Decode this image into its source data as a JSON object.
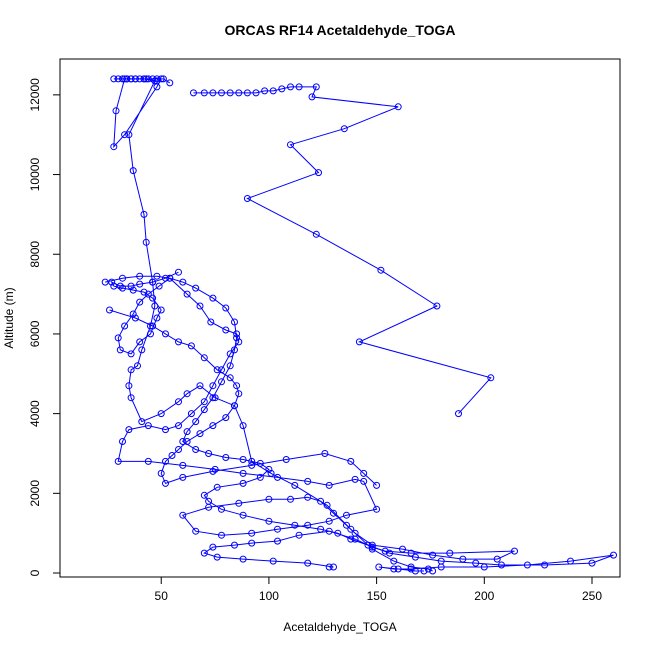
{
  "chart_data": {
    "type": "line",
    "title": "ORCAS RF14 Acetaldehyde_TOGA",
    "xlabel": "Acetaldehyde_TOGA",
    "ylabel": "Altitude (m)",
    "xlim": [
      3,
      263
    ],
    "ylim": [
      -100,
      12900
    ],
    "x_ticks": [
      50,
      100,
      150,
      200,
      250
    ],
    "y_ticks": [
      0,
      2000,
      4000,
      6000,
      8000,
      10000,
      12000
    ],
    "grid": false,
    "legend": "none",
    "color": "#0000ff",
    "series": [
      {
        "values": [
          [
            54,
            12300
          ],
          [
            51,
            12400
          ],
          [
            48,
            12400
          ],
          [
            44,
            12400
          ],
          [
            40,
            12400
          ],
          [
            36,
            12400
          ],
          [
            32,
            12400
          ],
          [
            28,
            12400
          ],
          [
            34,
            12400
          ],
          [
            38,
            12400
          ],
          [
            42,
            12400
          ],
          [
            46,
            12400
          ],
          [
            50,
            12400
          ],
          [
            48,
            12200
          ],
          [
            33,
            11000
          ],
          [
            28,
            10700
          ],
          [
            29,
            11600
          ],
          [
            33,
            12400
          ],
          [
            36,
            12400
          ],
          [
            43,
            12400
          ],
          [
            47,
            12350
          ],
          [
            35,
            11000
          ],
          [
            37,
            10100
          ],
          [
            42,
            9000
          ],
          [
            43,
            8300
          ],
          [
            46,
            7300
          ],
          [
            47,
            6700
          ],
          [
            45,
            6200
          ],
          [
            41,
            5600
          ],
          [
            39,
            5200
          ],
          [
            36,
            5100
          ],
          [
            35,
            4700
          ],
          [
            36,
            4400
          ],
          [
            41,
            3800
          ],
          [
            50,
            4000
          ],
          [
            58,
            4300
          ],
          [
            62,
            4500
          ],
          [
            68,
            4700
          ],
          [
            75,
            4400
          ],
          [
            84,
            4200
          ],
          [
            88,
            3700
          ],
          [
            92,
            2800
          ],
          [
            101,
            2500
          ],
          [
            112,
            2200
          ],
          [
            127,
            1700
          ],
          [
            138,
            1100
          ],
          [
            148,
            600
          ],
          [
            158,
            300
          ],
          [
            166,
            150
          ],
          [
            174,
            100
          ],
          [
            176,
            50
          ]
        ]
      },
      {
        "values": [
          [
            65,
            12050
          ],
          [
            70,
            12050
          ],
          [
            74,
            12050
          ],
          [
            78,
            12050
          ],
          [
            82,
            12050
          ],
          [
            86,
            12050
          ],
          [
            90,
            12050
          ],
          [
            94,
            12050
          ],
          [
            98,
            12100
          ],
          [
            102,
            12100
          ],
          [
            106,
            12150
          ],
          [
            110,
            12200
          ],
          [
            114,
            12200
          ],
          [
            122,
            12200
          ],
          [
            120,
            11950
          ],
          [
            160,
            11700
          ],
          [
            135,
            11150
          ],
          [
            110,
            10750
          ],
          [
            123,
            10050
          ],
          [
            90,
            9400
          ],
          [
            122,
            8500
          ],
          [
            152,
            7600
          ],
          [
            178,
            6700
          ],
          [
            142,
            5800
          ],
          [
            203,
            4900
          ],
          [
            188,
            4000
          ]
        ]
      },
      {
        "values": [
          [
            48,
            12350
          ],
          [
            42,
            12400
          ],
          [
            38,
            12400
          ],
          [
            34,
            12400
          ],
          [
            30,
            12400
          ]
        ]
      },
      {
        "values": [
          [
            58,
            7550
          ],
          [
            52,
            7400
          ],
          [
            46,
            7300
          ],
          [
            40,
            7250
          ],
          [
            36,
            7200
          ],
          [
            31,
            7200
          ],
          [
            27,
            7300
          ],
          [
            28,
            7200
          ],
          [
            32,
            7150
          ],
          [
            37,
            7100
          ],
          [
            42,
            7050
          ],
          [
            46,
            6900
          ],
          [
            50,
            6600
          ],
          [
            48,
            6400
          ],
          [
            45,
            6000
          ],
          [
            40,
            5800
          ],
          [
            36,
            5500
          ],
          [
            31,
            5600
          ],
          [
            30,
            5900
          ],
          [
            33,
            6200
          ],
          [
            37,
            6500
          ],
          [
            40,
            6800
          ],
          [
            44,
            7000
          ],
          [
            49,
            7200
          ],
          [
            54,
            7400
          ],
          [
            62,
            7000
          ],
          [
            68,
            6700
          ],
          [
            73,
            6300
          ],
          [
            80,
            6100
          ],
          [
            85,
            6000
          ],
          [
            86,
            5800
          ],
          [
            82,
            5500
          ],
          [
            78,
            5100
          ],
          [
            74,
            4700
          ],
          [
            70,
            4300
          ],
          [
            64,
            4000
          ],
          [
            58,
            3700
          ],
          [
            52,
            3600
          ],
          [
            44,
            3700
          ],
          [
            35,
            3600
          ],
          [
            32,
            3300
          ],
          [
            30,
            2800
          ],
          [
            44,
            2800
          ],
          [
            60,
            2700
          ],
          [
            75,
            2600
          ],
          [
            88,
            2500
          ],
          [
            104,
            2400
          ],
          [
            118,
            2300
          ],
          [
            128,
            2200
          ],
          [
            140,
            2350
          ],
          [
            144,
            2300
          ],
          [
            150,
            1600
          ],
          [
            136,
            1450
          ],
          [
            128,
            1300
          ],
          [
            118,
            1200
          ],
          [
            104,
            1100
          ],
          [
            92,
            1000
          ],
          [
            78,
            950
          ],
          [
            66,
            1050
          ],
          [
            60,
            1450
          ],
          [
            72,
            1650
          ],
          [
            86,
            1750
          ],
          [
            100,
            1850
          ],
          [
            110,
            1850
          ],
          [
            118,
            1900
          ],
          [
            124,
            1800
          ],
          [
            130,
            1500
          ],
          [
            136,
            1200
          ],
          [
            140,
            1000
          ],
          [
            148,
            700
          ],
          [
            162,
            600
          ],
          [
            176,
            450
          ],
          [
            190,
            350
          ],
          [
            206,
            350
          ],
          [
            214,
            550
          ],
          [
            184,
            500
          ],
          [
            166,
            500
          ],
          [
            154,
            550
          ],
          [
            148,
            650
          ],
          [
            140,
            850
          ],
          [
            128,
            1050
          ],
          [
            114,
            950
          ],
          [
            104,
            800
          ],
          [
            92,
            750
          ],
          [
            84,
            700
          ],
          [
            74,
            650
          ],
          [
            70,
            500
          ],
          [
            76,
            400
          ],
          [
            88,
            350
          ],
          [
            102,
            300
          ],
          [
            118,
            250
          ],
          [
            130,
            150
          ],
          [
            128,
            150
          ]
        ]
      },
      {
        "values": [
          [
            26,
            6600
          ],
          [
            38,
            6400
          ],
          [
            46,
            6200
          ],
          [
            52,
            6000
          ],
          [
            58,
            5800
          ],
          [
            64,
            5700
          ],
          [
            70,
            5400
          ],
          [
            76,
            5100
          ],
          [
            82,
            4900
          ],
          [
            85,
            4700
          ],
          [
            86,
            4500
          ],
          [
            84,
            4200
          ],
          [
            80,
            3900
          ],
          [
            74,
            3700
          ],
          [
            68,
            3500
          ],
          [
            62,
            3300
          ],
          [
            58,
            3100
          ],
          [
            55,
            2950
          ],
          [
            52,
            2800
          ],
          [
            50,
            2500
          ],
          [
            52,
            2250
          ],
          [
            60,
            2400
          ],
          [
            74,
            2550
          ],
          [
            92,
            2700
          ],
          [
            108,
            2850
          ],
          [
            126,
            3000
          ],
          [
            138,
            2800
          ],
          [
            144,
            2500
          ],
          [
            150,
            2200
          ]
        ]
      },
      {
        "values": [
          [
            24,
            7300
          ],
          [
            32,
            7400
          ],
          [
            40,
            7450
          ],
          [
            48,
            7450
          ],
          [
            54,
            7400
          ],
          [
            60,
            7300
          ],
          [
            66,
            7150
          ],
          [
            74,
            6900
          ],
          [
            80,
            6650
          ],
          [
            84,
            6300
          ],
          [
            85,
            5900
          ],
          [
            84,
            5600
          ],
          [
            82,
            5200
          ],
          [
            78,
            4800
          ],
          [
            74,
            4400
          ],
          [
            70,
            4100
          ],
          [
            66,
            3800
          ],
          [
            62,
            3550
          ],
          [
            60,
            3300
          ],
          [
            66,
            3100
          ],
          [
            72,
            3000
          ],
          [
            80,
            2900
          ],
          [
            88,
            2850
          ],
          [
            96,
            2750
          ],
          [
            100,
            2600
          ],
          [
            96,
            2400
          ],
          [
            88,
            2250
          ],
          [
            76,
            2150
          ],
          [
            70,
            1950
          ],
          [
            72,
            1800
          ],
          [
            78,
            1600
          ],
          [
            88,
            1450
          ],
          [
            100,
            1300
          ],
          [
            112,
            1200
          ],
          [
            124,
            1100
          ],
          [
            132,
            1000
          ],
          [
            138,
            850
          ],
          [
            146,
            700
          ],
          [
            156,
            500
          ],
          [
            168,
            400
          ],
          [
            180,
            300
          ],
          [
            196,
            250
          ],
          [
            208,
            200
          ],
          [
            228,
            200
          ],
          [
            250,
            250
          ],
          [
            260,
            450
          ],
          [
            240,
            300
          ],
          [
            220,
            200
          ],
          [
            200,
            150
          ],
          [
            180,
            150
          ],
          [
            166,
            100
          ],
          [
            158,
            100
          ],
          [
            151,
            150
          ],
          [
            160,
            100
          ],
          [
            168,
            50
          ],
          [
            172,
            50
          ]
        ]
      }
    ]
  }
}
